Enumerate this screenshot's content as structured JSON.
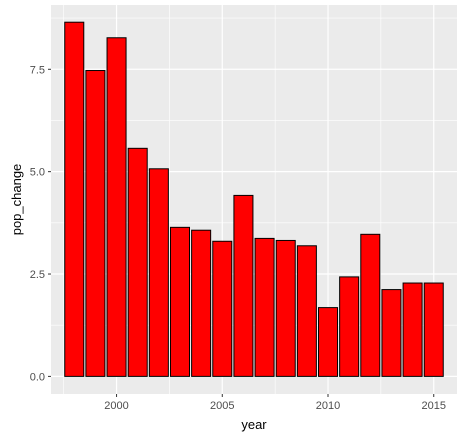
{
  "chart_data": {
    "type": "bar",
    "x": [
      1998,
      1999,
      2000,
      2001,
      2002,
      2003,
      2004,
      2005,
      2006,
      2007,
      2008,
      2009,
      2010,
      2011,
      2012,
      2013,
      2014,
      2015
    ],
    "values": [
      8.65,
      7.47,
      8.27,
      5.57,
      5.07,
      3.64,
      3.57,
      3.3,
      4.42,
      3.37,
      3.32,
      3.19,
      1.68,
      2.43,
      3.47,
      2.12,
      2.28,
      2.28
    ],
    "xlabel": "year",
    "ylabel": "pop_change",
    "xlim": [
      1996.9,
      2016.1
    ],
    "ylim": [
      -0.43,
      9.07
    ],
    "x_ticks": [
      2000,
      2005,
      2010,
      2015
    ],
    "x_tick_labels": [
      "2000",
      "2005",
      "2010",
      "2015"
    ],
    "y_ticks": [
      0,
      2.5,
      5,
      7.5
    ],
    "y_tick_labels": [
      "0.0",
      "2.5",
      "5.0",
      "7.5"
    ],
    "grid": true,
    "bar_fill": "#FF0000",
    "bar_outline": "#000000",
    "panel_background": "#EBEBEB",
    "gridline_color": "#FFFFFF"
  }
}
